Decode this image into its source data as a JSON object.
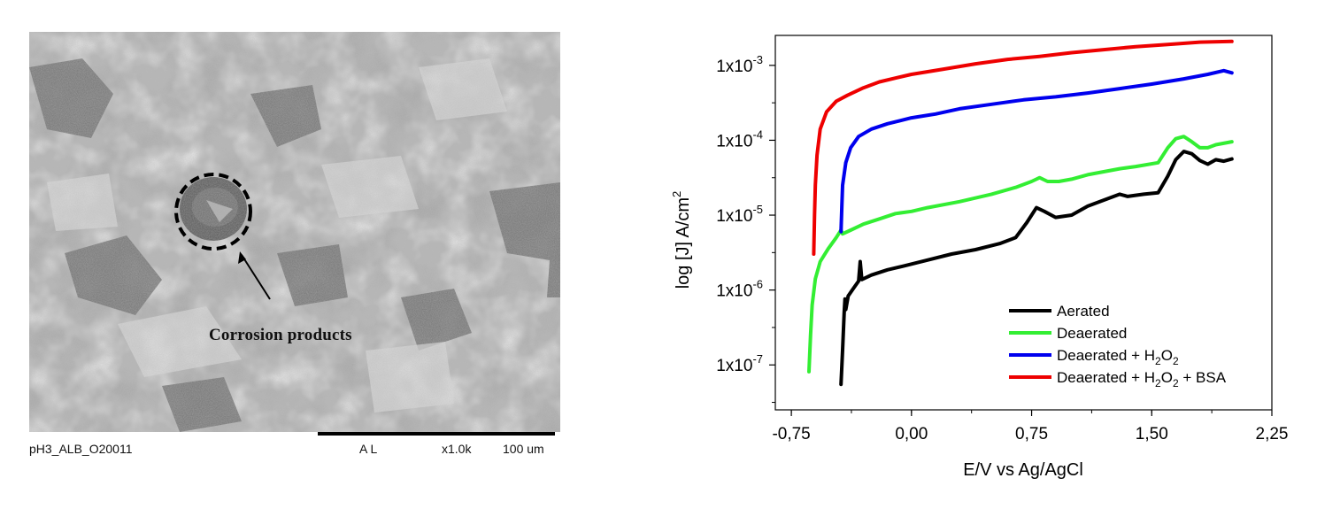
{
  "sem_panel": {
    "annotation": "Corrosion products",
    "footer": {
      "sample_id": "pH3_ALB_O20011",
      "detector": "A L",
      "magnification": "x1.0k",
      "scale_bar": "100 um"
    }
  },
  "chart_data": {
    "type": "line",
    "xlabel": "E/V vs Ag/AgCl",
    "ylabel": "log [J] A/cm²",
    "xlim": [
      -0.85,
      2.25
    ],
    "ylim": [
      -7.6,
      -2.6
    ],
    "y_scale": "log",
    "x_ticks": [
      {
        "value": -0.75,
        "label": "-0,75"
      },
      {
        "value": 0.0,
        "label": "0,00"
      },
      {
        "value": 0.75,
        "label": "0,75"
      },
      {
        "value": 1.5,
        "label": "1,50"
      },
      {
        "value": 2.25,
        "label": "2,25"
      }
    ],
    "y_ticks": [
      {
        "value": -3,
        "label": "1x10",
        "exp": "-3"
      },
      {
        "value": -4,
        "label": "1x10",
        "exp": "-4"
      },
      {
        "value": -5,
        "label": "1x10",
        "exp": "-5"
      },
      {
        "value": -6,
        "label": "1x10",
        "exp": "-6"
      },
      {
        "value": -7,
        "label": "1x10",
        "exp": "-7"
      }
    ],
    "legend_position": "bottom-right",
    "grid": false,
    "series": [
      {
        "name": "Aerated",
        "legend": {
          "text": "Aerated"
        },
        "color": "#000000",
        "points": [
          [
            -0.44,
            -7.26
          ],
          [
            -0.43,
            -6.8
          ],
          [
            -0.42,
            -6.3
          ],
          [
            -0.415,
            -6.12
          ],
          [
            -0.41,
            -6.26
          ],
          [
            -0.395,
            -6.08
          ],
          [
            -0.36,
            -5.97
          ],
          [
            -0.33,
            -5.88
          ],
          [
            -0.32,
            -5.62
          ],
          [
            -0.31,
            -5.86
          ],
          [
            -0.25,
            -5.8
          ],
          [
            -0.15,
            -5.73
          ],
          [
            -0.05,
            -5.68
          ],
          [
            0.1,
            -5.6
          ],
          [
            0.25,
            -5.52
          ],
          [
            0.4,
            -5.46
          ],
          [
            0.55,
            -5.38
          ],
          [
            0.65,
            -5.3
          ],
          [
            0.72,
            -5.1
          ],
          [
            0.78,
            -4.9
          ],
          [
            0.83,
            -4.95
          ],
          [
            0.9,
            -5.03
          ],
          [
            1.0,
            -5.0
          ],
          [
            1.1,
            -4.88
          ],
          [
            1.2,
            -4.8
          ],
          [
            1.3,
            -4.72
          ],
          [
            1.35,
            -4.75
          ],
          [
            1.45,
            -4.72
          ],
          [
            1.54,
            -4.7
          ],
          [
            1.6,
            -4.48
          ],
          [
            1.65,
            -4.26
          ],
          [
            1.7,
            -4.15
          ],
          [
            1.75,
            -4.18
          ],
          [
            1.8,
            -4.27
          ],
          [
            1.85,
            -4.32
          ],
          [
            1.9,
            -4.26
          ],
          [
            1.95,
            -4.28
          ],
          [
            2.0,
            -4.25
          ]
        ]
      },
      {
        "name": "Deaerated",
        "legend": {
          "text": "Deaerated"
        },
        "color": "#33ee33",
        "points": [
          [
            -0.64,
            -7.09
          ],
          [
            -0.63,
            -6.6
          ],
          [
            -0.62,
            -6.2
          ],
          [
            -0.6,
            -5.85
          ],
          [
            -0.57,
            -5.62
          ],
          [
            -0.52,
            -5.45
          ],
          [
            -0.47,
            -5.3
          ],
          [
            -0.44,
            -5.2
          ],
          [
            -0.43,
            -5.25
          ],
          [
            -0.38,
            -5.2
          ],
          [
            -0.3,
            -5.12
          ],
          [
            -0.2,
            -5.05
          ],
          [
            -0.1,
            -4.98
          ],
          [
            0.0,
            -4.95
          ],
          [
            0.1,
            -4.9
          ],
          [
            0.3,
            -4.82
          ],
          [
            0.5,
            -4.72
          ],
          [
            0.65,
            -4.63
          ],
          [
            0.75,
            -4.55
          ],
          [
            0.8,
            -4.5
          ],
          [
            0.85,
            -4.55
          ],
          [
            0.92,
            -4.55
          ],
          [
            1.0,
            -4.52
          ],
          [
            1.1,
            -4.46
          ],
          [
            1.2,
            -4.42
          ],
          [
            1.3,
            -4.38
          ],
          [
            1.4,
            -4.35
          ],
          [
            1.54,
            -4.3
          ],
          [
            1.6,
            -4.1
          ],
          [
            1.65,
            -3.98
          ],
          [
            1.7,
            -3.95
          ],
          [
            1.75,
            -4.02
          ],
          [
            1.8,
            -4.1
          ],
          [
            1.85,
            -4.1
          ],
          [
            1.9,
            -4.06
          ],
          [
            2.0,
            -4.02
          ]
        ]
      },
      {
        "name": "Deaerated + H₂O₂",
        "legend": {
          "text": "Deaerated + H",
          "sub": "2",
          "mid": "O",
          "sub2": "2",
          "tail": ""
        },
        "color": "#0000ee",
        "points": [
          [
            -0.44,
            -5.22
          ],
          [
            -0.435,
            -4.9
          ],
          [
            -0.43,
            -4.6
          ],
          [
            -0.41,
            -4.3
          ],
          [
            -0.38,
            -4.1
          ],
          [
            -0.33,
            -3.95
          ],
          [
            -0.25,
            -3.85
          ],
          [
            -0.15,
            -3.78
          ],
          [
            0.0,
            -3.7
          ],
          [
            0.15,
            -3.65
          ],
          [
            0.3,
            -3.58
          ],
          [
            0.5,
            -3.52
          ],
          [
            0.7,
            -3.46
          ],
          [
            0.9,
            -3.42
          ],
          [
            1.1,
            -3.37
          ],
          [
            1.3,
            -3.31
          ],
          [
            1.5,
            -3.25
          ],
          [
            1.7,
            -3.18
          ],
          [
            1.85,
            -3.12
          ],
          [
            1.95,
            -3.07
          ],
          [
            2.0,
            -3.1
          ]
        ]
      },
      {
        "name": "Deaerated + H₂O₂ + BSA",
        "legend": {
          "text": "Deaerated + H",
          "sub": "2",
          "mid": "O",
          "sub2": "2",
          "tail": " + BSA"
        },
        "color": "#ee0000",
        "points": [
          [
            -0.61,
            -5.52
          ],
          [
            -0.605,
            -5.0
          ],
          [
            -0.6,
            -4.6
          ],
          [
            -0.59,
            -4.2
          ],
          [
            -0.57,
            -3.85
          ],
          [
            -0.53,
            -3.62
          ],
          [
            -0.47,
            -3.48
          ],
          [
            -0.4,
            -3.4
          ],
          [
            -0.3,
            -3.3
          ],
          [
            -0.2,
            -3.22
          ],
          [
            -0.1,
            -3.17
          ],
          [
            0.0,
            -3.12
          ],
          [
            0.2,
            -3.05
          ],
          [
            0.4,
            -2.98
          ],
          [
            0.6,
            -2.92
          ],
          [
            0.8,
            -2.88
          ],
          [
            1.0,
            -2.83
          ],
          [
            1.2,
            -2.79
          ],
          [
            1.4,
            -2.75
          ],
          [
            1.6,
            -2.72
          ],
          [
            1.8,
            -2.69
          ],
          [
            2.0,
            -2.68
          ]
        ]
      }
    ]
  }
}
